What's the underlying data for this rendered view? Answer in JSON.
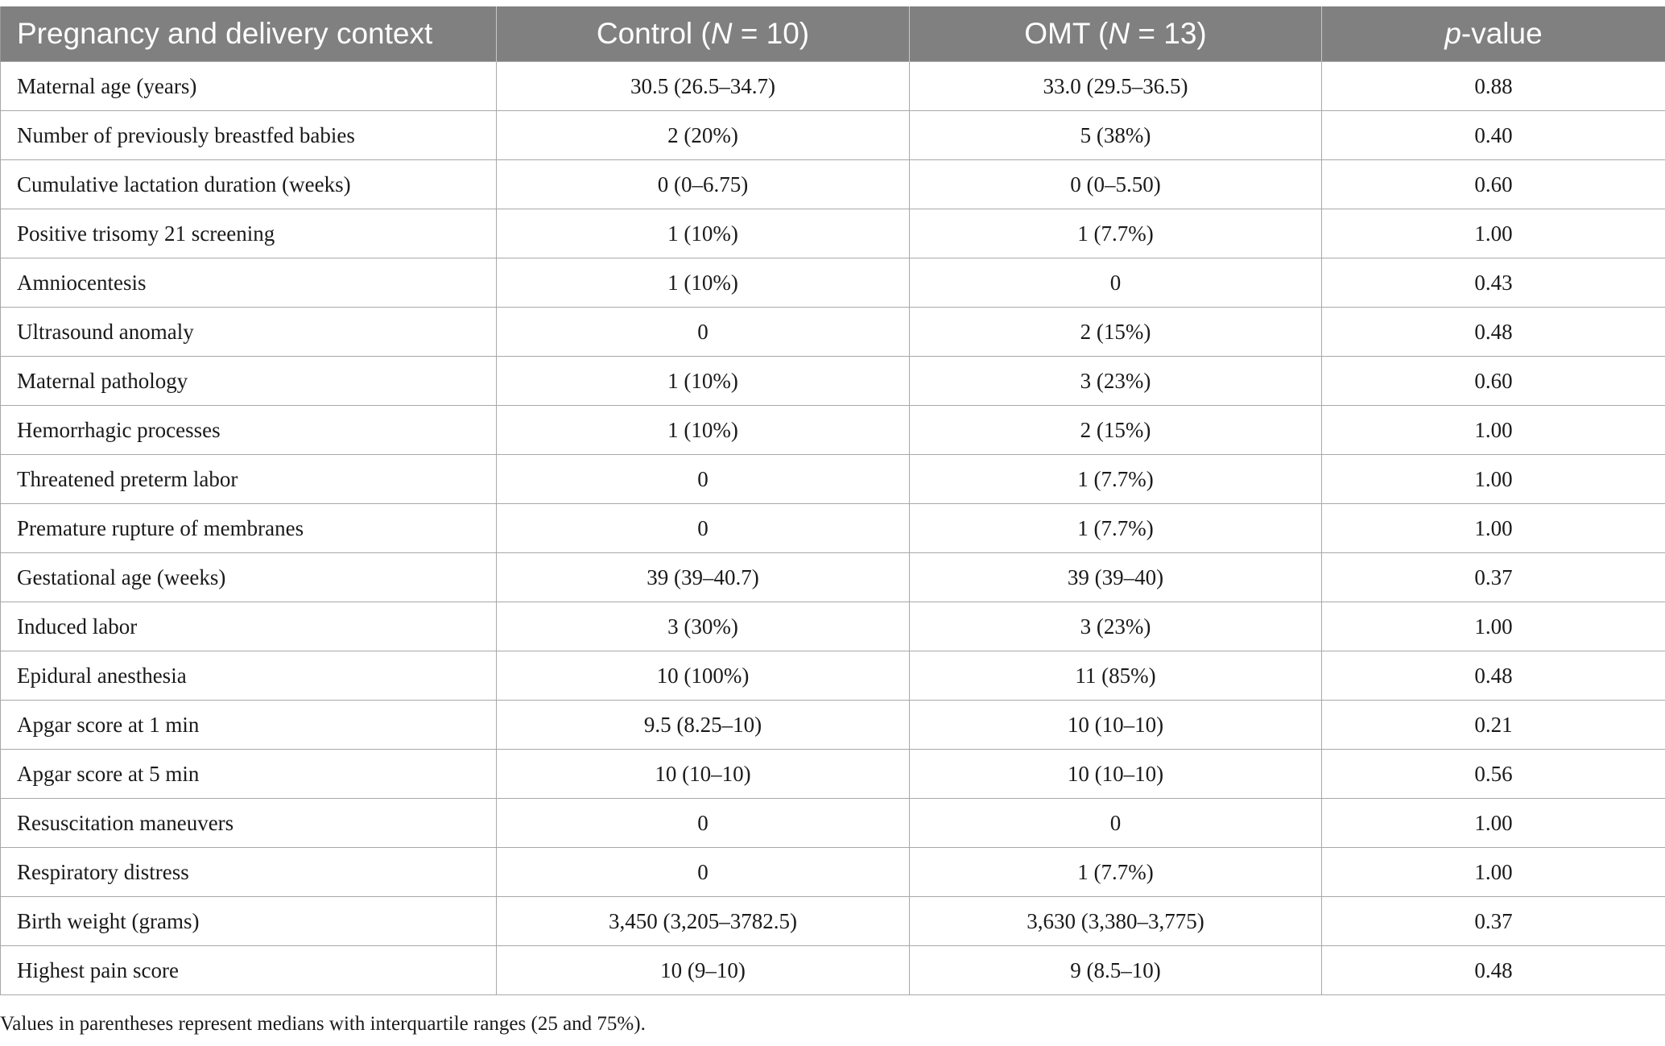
{
  "header": {
    "context": "Pregnancy and delivery context",
    "control_prefix": "Control (",
    "control_n_symbol": "N",
    "control_suffix": " = 10)",
    "omt_prefix": "OMT (",
    "omt_n_symbol": "N",
    "omt_suffix": " = 13)",
    "p_symbol": "p",
    "p_suffix": "-value"
  },
  "rows": [
    {
      "label": "Maternal age (years)",
      "control": "30.5 (26.5–34.7)",
      "omt": "33.0 (29.5–36.5)",
      "p": "0.88"
    },
    {
      "label": "Number of previously breastfed babies",
      "control": "2 (20%)",
      "omt": "5 (38%)",
      "p": "0.40"
    },
    {
      "label": "Cumulative lactation duration (weeks)",
      "control": "0 (0–6.75)",
      "omt": "0 (0–5.50)",
      "p": "0.60"
    },
    {
      "label": "Positive trisomy 21 screening",
      "control": "1 (10%)",
      "omt": "1 (7.7%)",
      "p": "1.00"
    },
    {
      "label": "Amniocentesis",
      "control": "1 (10%)",
      "omt": "0",
      "p": "0.43"
    },
    {
      "label": "Ultrasound anomaly",
      "control": "0",
      "omt": "2 (15%)",
      "p": "0.48"
    },
    {
      "label": "Maternal pathology",
      "control": "1 (10%)",
      "omt": "3 (23%)",
      "p": "0.60"
    },
    {
      "label": "Hemorrhagic processes",
      "control": "1 (10%)",
      "omt": "2 (15%)",
      "p": "1.00"
    },
    {
      "label": "Threatened preterm labor",
      "control": "0",
      "omt": "1 (7.7%)",
      "p": "1.00"
    },
    {
      "label": "Premature rupture of membranes",
      "control": "0",
      "omt": "1 (7.7%)",
      "p": "1.00"
    },
    {
      "label": "Gestational age (weeks)",
      "control": "39 (39–40.7)",
      "omt": "39 (39–40)",
      "p": "0.37"
    },
    {
      "label": "Induced labor",
      "control": "3 (30%)",
      "omt": "3 (23%)",
      "p": "1.00"
    },
    {
      "label": "Epidural anesthesia",
      "control": "10 (100%)",
      "omt": "11 (85%)",
      "p": "0.48"
    },
    {
      "label": "Apgar score at 1 min",
      "control": "9.5 (8.25–10)",
      "omt": "10 (10–10)",
      "p": "0.21"
    },
    {
      "label": "Apgar score at 5 min",
      "control": "10 (10–10)",
      "omt": "10 (10–10)",
      "p": "0.56"
    },
    {
      "label": "Resuscitation maneuvers",
      "control": "0",
      "omt": "0",
      "p": "1.00"
    },
    {
      "label": "Respiratory distress",
      "control": "0",
      "omt": "1 (7.7%)",
      "p": "1.00"
    },
    {
      "label": "Birth weight (grams)",
      "control": "3,450 (3,205–3782.5)",
      "omt": "3,630 (3,380–3,775)",
      "p": "0.37"
    },
    {
      "label": "Highest pain score",
      "control": "10 (9–10)",
      "omt": "9 (8.5–10)",
      "p": "0.48"
    }
  ],
  "footnote": "Values in parentheses represent medians with interquartile ranges (25 and 75%).",
  "colors": {
    "header_bg": "#808080",
    "header_text": "#ffffff",
    "grid": "#a8a8a8"
  }
}
